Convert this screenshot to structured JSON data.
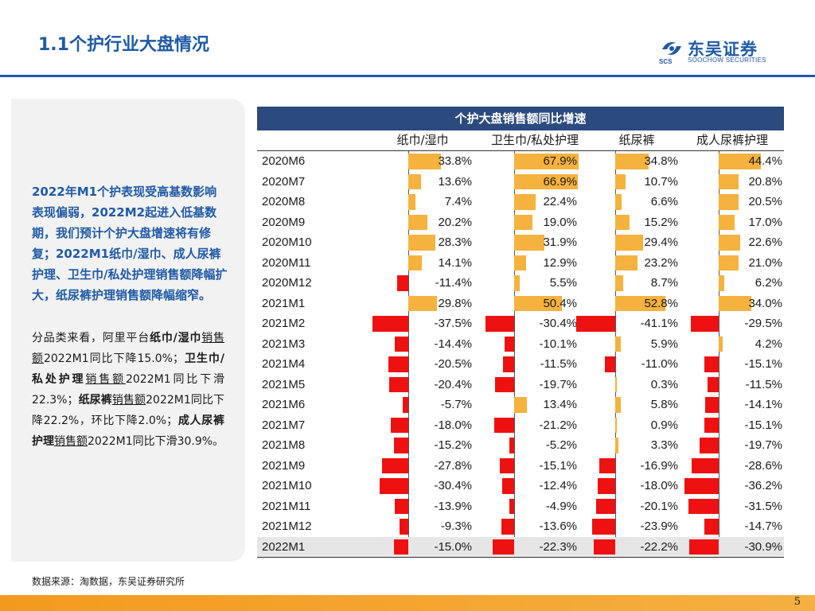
{
  "header": {
    "title": "1.1个护行业大盘情况",
    "logo_cn": "东吴证券",
    "logo_en": "SOOCHOW SECURITIES",
    "logo_sub": "SCS"
  },
  "summary": "2022年M1个护表现受高基数影响表现偏弱，2022M2起进入低基数期，我们预计个护大盘增速将有修复；2022M1纸巾/湿巾、成人尿裤护理、卫生巾/私处护理销售额降幅扩大，纸尿裤护理销售额降幅缩窄。",
  "detail": {
    "p1": "分品类来看，阿里平台",
    "k1": "纸巾/湿巾",
    "u1": "销售额",
    "p2": "2022M1同比下降15.0%；",
    "k2": "卫生巾/私处护理",
    "u2": "销售额",
    "p3": "2022M1同比下滑22.3%；",
    "k3": "纸尿裤",
    "u3": "销售额",
    "p4": "2022M1同比下降22.2%，环比下降2.0%；",
    "k4": "成人尿裤护理",
    "u4": "销售额",
    "p5": "2022M1同比下滑30.9%。"
  },
  "source": "数据来源：淘数据，东吴证券研究所",
  "page_number": "5",
  "chart_data": {
    "type": "table",
    "title": "个护大盘销售额同比增速",
    "columns": [
      "纸巾/湿巾",
      "卫生巾/私处护理",
      "纸尿裤",
      "成人尿裤护理"
    ],
    "rows": [
      {
        "month": "2020M6",
        "values": [
          33.8,
          67.9,
          34.8,
          44.4
        ]
      },
      {
        "month": "2020M7",
        "values": [
          13.6,
          66.9,
          10.7,
          20.8
        ]
      },
      {
        "month": "2020M8",
        "values": [
          7.4,
          22.4,
          6.6,
          20.5
        ]
      },
      {
        "month": "2020M9",
        "values": [
          20.2,
          19.0,
          15.2,
          17.0
        ]
      },
      {
        "month": "2020M10",
        "values": [
          28.3,
          31.9,
          29.4,
          22.6
        ]
      },
      {
        "month": "2020M11",
        "values": [
          14.1,
          12.9,
          23.2,
          21.0
        ]
      },
      {
        "month": "2020M12",
        "values": [
          -11.4,
          5.5,
          8.7,
          6.2
        ]
      },
      {
        "month": "2021M1",
        "values": [
          29.8,
          50.4,
          52.8,
          34.0
        ]
      },
      {
        "month": "2021M2",
        "values": [
          -37.5,
          -30.4,
          -41.1,
          -29.5
        ]
      },
      {
        "month": "2021M3",
        "values": [
          -14.4,
          -10.1,
          5.9,
          4.2
        ]
      },
      {
        "month": "2021M4",
        "values": [
          -20.5,
          -11.5,
          -11.0,
          -15.1
        ]
      },
      {
        "month": "2021M5",
        "values": [
          -20.4,
          -19.7,
          0.3,
          -11.5
        ]
      },
      {
        "month": "2021M6",
        "values": [
          -5.7,
          13.4,
          5.8,
          -14.1
        ]
      },
      {
        "month": "2021M7",
        "values": [
          -18.0,
          -21.2,
          0.9,
          -15.1
        ]
      },
      {
        "month": "2021M8",
        "values": [
          -15.2,
          -5.2,
          3.3,
          -19.7
        ]
      },
      {
        "month": "2021M9",
        "values": [
          -27.8,
          -15.1,
          -16.9,
          -28.6
        ]
      },
      {
        "month": "2021M10",
        "values": [
          -30.4,
          -12.4,
          -18.0,
          -36.2
        ]
      },
      {
        "month": "2021M11",
        "values": [
          -13.9,
          -4.9,
          -20.1,
          -31.5
        ]
      },
      {
        "month": "2021M12",
        "values": [
          -9.3,
          -13.6,
          -23.9,
          -14.7
        ]
      },
      {
        "month": "2022M1",
        "values": [
          -15.0,
          -22.3,
          -22.2,
          -30.9
        ]
      }
    ],
    "unit": "%",
    "colors": {
      "positive": "#f6b23e",
      "negative": "#ee1111",
      "header": "#2b4a7e"
    }
  }
}
